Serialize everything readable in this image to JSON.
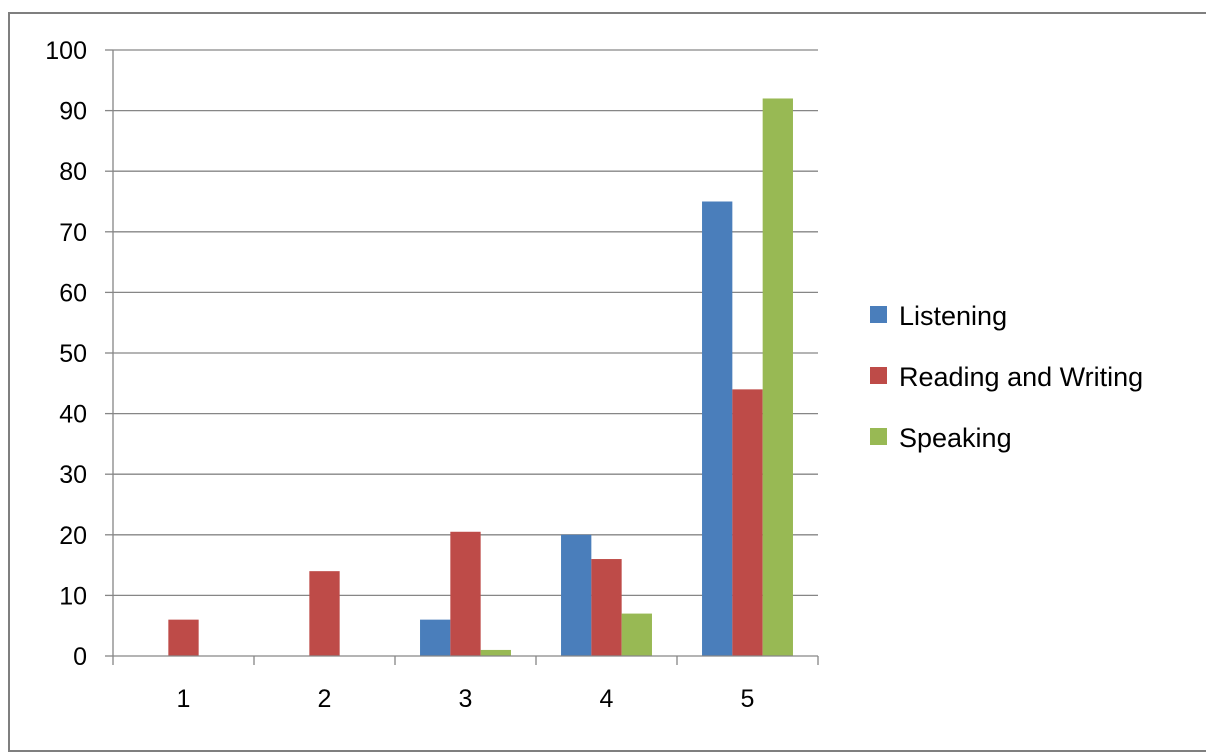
{
  "chart_data": {
    "type": "bar",
    "title": "",
    "xlabel": "",
    "ylabel": "",
    "categories": [
      "1",
      "2",
      "3",
      "4",
      "5"
    ],
    "ylim": [
      0,
      100
    ],
    "yticks": [
      0,
      10,
      20,
      30,
      40,
      50,
      60,
      70,
      80,
      90,
      100
    ],
    "grid": true,
    "legend_position": "right",
    "series": [
      {
        "name": "Listening",
        "color": "#4a7ebb",
        "values": [
          0,
          0,
          6,
          20,
          75
        ]
      },
      {
        "name": "Reading and Writing",
        "color": "#be4b48",
        "values": [
          6,
          14,
          20.5,
          16,
          44
        ]
      },
      {
        "name": "Speaking",
        "color": "#98b954",
        "values": [
          0,
          0,
          1,
          7,
          92
        ]
      }
    ]
  }
}
